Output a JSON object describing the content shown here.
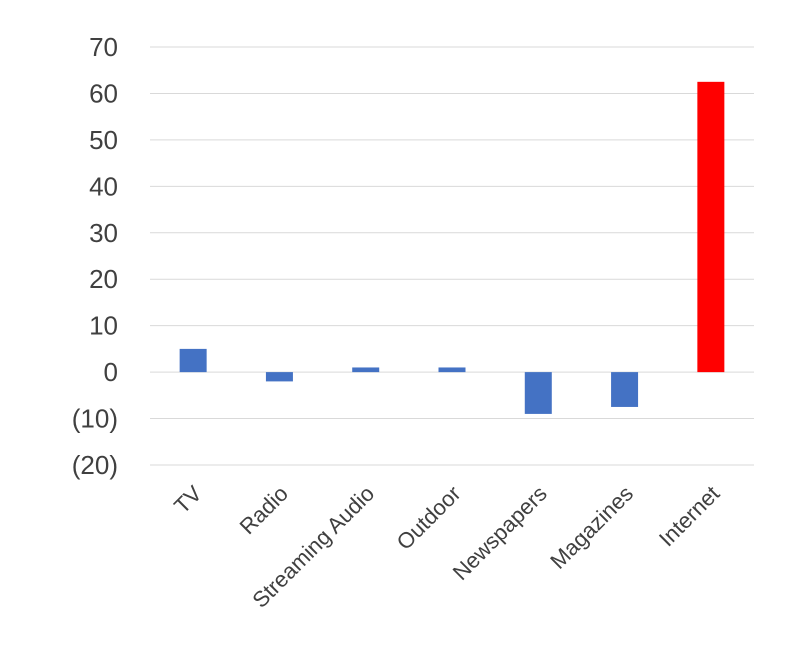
{
  "chart_data": {
    "type": "bar",
    "title": "",
    "xlabel": "",
    "ylabel": "",
    "categories": [
      "TV",
      "Radio",
      "Streaming Audio",
      "Outdoor",
      "Newspapers",
      "Magazines",
      "Internet"
    ],
    "values": [
      5,
      -2,
      1,
      1,
      -9,
      -7.5,
      62.5
    ],
    "colors": [
      "#4472c4",
      "#4472c4",
      "#4472c4",
      "#4472c4",
      "#4472c4",
      "#4472c4",
      "#ff0000"
    ],
    "ylim": [
      -20,
      70
    ],
    "yticks": [
      70,
      60,
      50,
      40,
      30,
      20,
      10,
      0,
      -10,
      -20
    ],
    "ytick_labels": [
      "70",
      "60",
      "50",
      "40",
      "30",
      "20",
      "10",
      "0",
      "(10)",
      "(20)"
    ],
    "grid": true,
    "legend": "none"
  }
}
